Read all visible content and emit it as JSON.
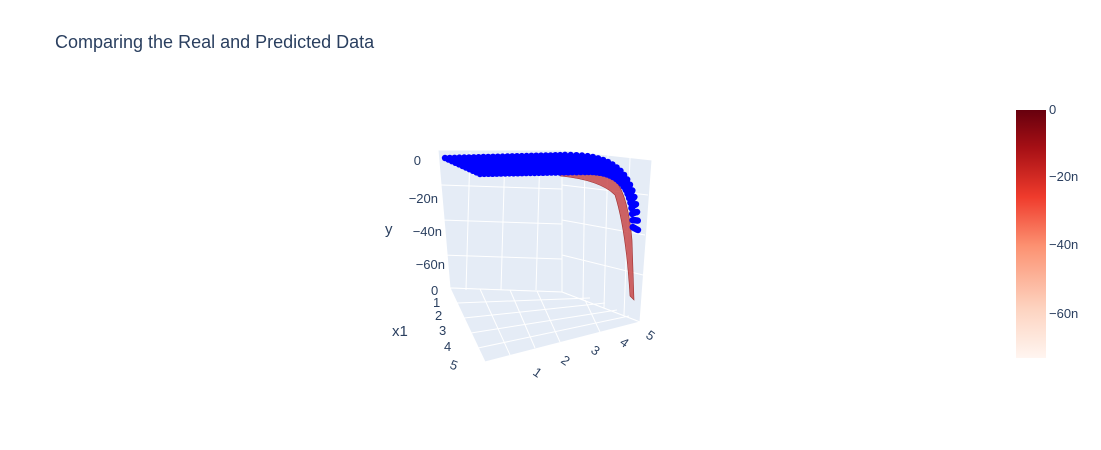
{
  "title": "Comparing the Real and Predicted Data",
  "colors": {
    "text": "#2a3f5f",
    "pane_bg": "#e5ecf6",
    "grid": "#ffffff",
    "points": "#0000ff",
    "surface": "#c03030",
    "colorscale": [
      "#fff5f0",
      "#fdd3c0",
      "#fc9272",
      "#fb6a4a",
      "#ef3b2c",
      "#cb181d",
      "#a50f15",
      "#67000d"
    ]
  },
  "chart_data": {
    "type": "scatter3d+surface",
    "axes": {
      "y": {
        "title": "y",
        "ticks": [
          "0",
          "−20n",
          "−40n",
          "−60n"
        ],
        "range": [
          -75,
          0
        ],
        "unit": "n"
      },
      "x1": {
        "title": "x1",
        "ticks": [
          "0",
          "1",
          "2",
          "3",
          "4",
          "5"
        ],
        "range": [
          0,
          5
        ]
      },
      "x2": {
        "title": "",
        "ticks": [
          "1",
          "2",
          "3",
          "4",
          "5"
        ],
        "range": [
          0,
          5
        ]
      }
    },
    "colorbar": {
      "range": [
        -75,
        0
      ],
      "ticks": [
        "0",
        "−20n",
        "−40n",
        "−60n"
      ],
      "tick_values": [
        0,
        -20,
        -40,
        -60
      ]
    },
    "series": [
      {
        "kind": "scatter3d",
        "description_values": "real data: y ≈ 0 across most of x2, dropping to about −40n as x2 → 5"
      },
      {
        "kind": "surface",
        "description_values": "predicted surface: y ≈ 0 across most of x2, dropping below −60n as x2 → 5"
      }
    ],
    "legend": "none",
    "grid": true
  }
}
